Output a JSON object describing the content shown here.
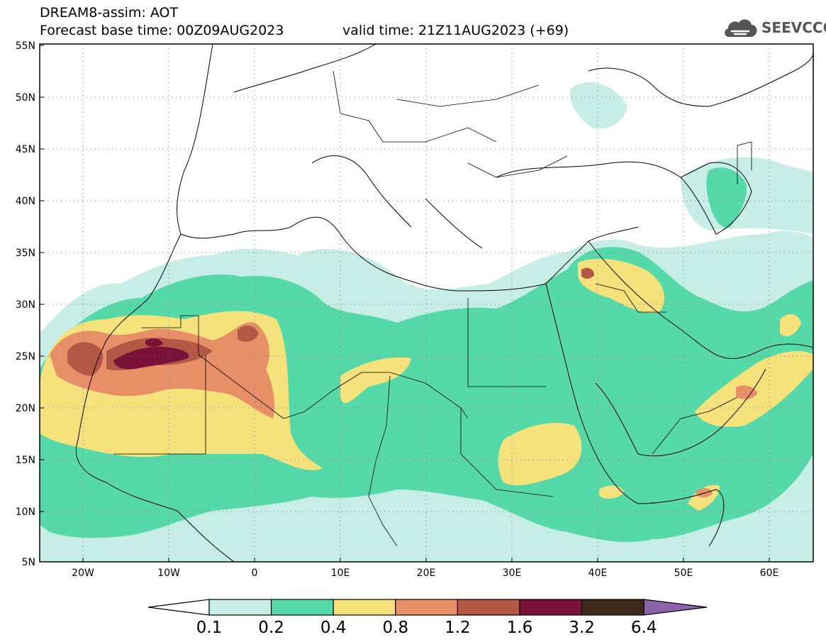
{
  "header": {
    "title_line1": "DREAM8-assim: AOT",
    "title_line2": "Forecast base time: 00Z09AUG2023",
    "valid_time": "valid time: 21Z11AUG2023 (+69)",
    "logo_text": "SEEVCCC"
  },
  "map": {
    "lat_ticks": [
      "55N",
      "50N",
      "45N",
      "40N",
      "35N",
      "30N",
      "25N",
      "20N",
      "15N",
      "10N",
      "5N"
    ],
    "lon_ticks": [
      "20W",
      "10W",
      "0",
      "10E",
      "20E",
      "30E",
      "40E",
      "50E",
      "60E"
    ]
  },
  "colorbar": {
    "labels": [
      "0.1",
      "0.2",
      "0.4",
      "0.8",
      "1.2",
      "1.6",
      "3.2",
      "6.4"
    ],
    "colors": [
      "#ffffff",
      "#c6eee6",
      "#56d9a9",
      "#f5e27a",
      "#e79068",
      "#b45845",
      "#7b1038",
      "#3e2a1a",
      "#8c62a8"
    ]
  },
  "icons": [
    "cloud-logo-icon"
  ]
}
